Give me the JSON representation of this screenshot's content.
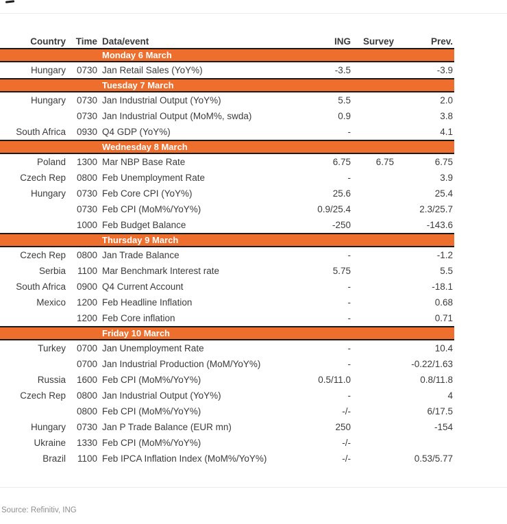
{
  "page": {
    "source_note": "Source: Refinitiv, ING"
  },
  "colors": {
    "accent_orange": "#ED6E2D",
    "bar_border": "#1A1A1A",
    "text_ink": "#3B3B3B"
  },
  "table": {
    "columns": [
      "Country",
      "Time",
      "Data/event",
      "ING",
      "Survey",
      "Prev."
    ],
    "sections": [
      {
        "day": "Monday 6 March",
        "rows": [
          {
            "country": "Hungary",
            "time": "0730",
            "event": "Jan Retail Sales (YoY%)",
            "ing": "-3.5",
            "survey": "",
            "prev": "-3.9"
          }
        ]
      },
      {
        "day": "Tuesday 7 March",
        "rows": [
          {
            "country": "Hungary",
            "time": "0730",
            "event": "Jan Industrial Output (YoY%)",
            "ing": "5.5",
            "survey": "",
            "prev": "2.0"
          },
          {
            "country": "",
            "time": "0730",
            "event": "Jan Industrial Output (MoM%, swda)",
            "ing": "0.9",
            "survey": "",
            "prev": "3.8"
          },
          {
            "country": "South Africa",
            "time": "0930",
            "event": "Q4 GDP (YoY%)",
            "ing": "-",
            "survey": "",
            "prev": "4.1"
          }
        ]
      },
      {
        "day": "Wednesday 8 March",
        "rows": [
          {
            "country": "Poland",
            "time": "1300",
            "event": "Mar NBP Base Rate",
            "ing": "6.75",
            "survey": "6.75",
            "prev": "6.75"
          },
          {
            "country": "Czech Rep",
            "time": "0800",
            "event": "Feb Unemployment Rate",
            "ing": "-",
            "survey": "",
            "prev": "3.9"
          },
          {
            "country": "Hungary",
            "time": "0730",
            "event": "Feb Core CPI (YoY%)",
            "ing": "25.6",
            "survey": "",
            "prev": "25.4"
          },
          {
            "country": "",
            "time": "0730",
            "event": "Feb CPI (MoM%/YoY%)",
            "ing": "0.9/25.4",
            "survey": "",
            "prev": "2.3/25.7"
          },
          {
            "country": "",
            "time": "1000",
            "event": "Feb Budget Balance",
            "ing": "-250",
            "survey": "",
            "prev": "-143.6"
          }
        ]
      },
      {
        "day": "Thursday 9 March",
        "rows": [
          {
            "country": "Czech Rep",
            "time": "0800",
            "event": "Jan Trade Balance",
            "ing": "-",
            "survey": "",
            "prev": "-1.2"
          },
          {
            "country": "Serbia",
            "time": "1100",
            "event": "Mar Benchmark Interest rate",
            "ing": "5.75",
            "survey": "",
            "prev": "5.5"
          },
          {
            "country": "South Africa",
            "time": "0900",
            "event": "Q4 Current Account",
            "ing": "-",
            "survey": "",
            "prev": "-18.1"
          },
          {
            "country": "Mexico",
            "time": "1200",
            "event": "Feb Headline Inflation",
            "ing": "-",
            "survey": "",
            "prev": "0.68"
          },
          {
            "country": "",
            "time": "1200",
            "event": "Feb Core inflation",
            "ing": "-",
            "survey": "",
            "prev": "0.71"
          }
        ]
      },
      {
        "day": "Friday 10 March",
        "rows": [
          {
            "country": "Turkey",
            "time": "0700",
            "event": "Jan Unemployment Rate",
            "ing": "-",
            "survey": "",
            "prev": "10.4"
          },
          {
            "country": "",
            "time": "0700",
            "event": "Jan Industrial Production (MoM/YoY%)",
            "ing": "-",
            "survey": "",
            "prev": "-0.22/1.63"
          },
          {
            "country": "Russia",
            "time": "1600",
            "event": "Feb CPI (MoM%/YoY%)",
            "ing": "0.5/11.0",
            "survey": "",
            "prev": "0.8/11.8"
          },
          {
            "country": "Czech Rep",
            "time": "0800",
            "event": "Jan Industrial Output (YoY%)",
            "ing": "-",
            "survey": "",
            "prev": "4"
          },
          {
            "country": "",
            "time": "0800",
            "event": "Feb CPI (MoM%/YoY%)",
            "ing": "-/-",
            "survey": "",
            "prev": "6/17.5"
          },
          {
            "country": "Hungary",
            "time": "0730",
            "event": "Jan P Trade Balance (EUR mn)",
            "ing": "250",
            "survey": "",
            "prev": "-154"
          },
          {
            "country": "Ukraine",
            "time": "1330",
            "event": "Feb CPI (MoM%/YoY%)",
            "ing": "-/-",
            "survey": "",
            "prev": ""
          },
          {
            "country": "Brazil",
            "time": "1100",
            "event": "Feb IPCA Inflation Index (MoM%/YoY%)",
            "ing": "-/-",
            "survey": "",
            "prev": "0.53/5.77"
          }
        ]
      }
    ]
  }
}
